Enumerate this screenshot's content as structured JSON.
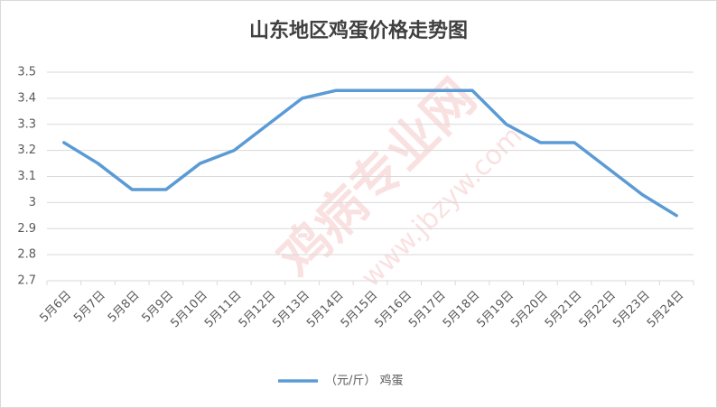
{
  "chart_data": {
    "type": "line",
    "title": "山东地区鸡蛋价格走势图",
    "watermark": [
      "鸡病专业网",
      "www.jbzyw.com"
    ],
    "categories": [
      "5月6日",
      "5月7日",
      "5月8日",
      "5月9日",
      "5月10日",
      "5月11日",
      "5月12日",
      "5月13日",
      "5月14日",
      "5月15日",
      "5月16日",
      "5月17日",
      "5月18日",
      "5月19日",
      "5月20日",
      "5月21日",
      "5月22日",
      "5月23日",
      "5月24日"
    ],
    "series": [
      {
        "name": "（元/斤） 鸡蛋",
        "color": "#5b9bd5",
        "values": [
          3.23,
          3.15,
          3.05,
          3.05,
          3.15,
          3.2,
          3.3,
          3.4,
          3.43,
          3.43,
          3.43,
          3.43,
          3.43,
          3.3,
          3.23,
          3.23,
          3.13,
          3.03,
          2.95
        ]
      }
    ],
    "ylim": [
      2.7,
      3.5
    ],
    "yticks": [
      2.7,
      2.8,
      2.9,
      3,
      3.1,
      3.2,
      3.3,
      3.4,
      3.5
    ],
    "grid": true,
    "legend": "bottom"
  }
}
